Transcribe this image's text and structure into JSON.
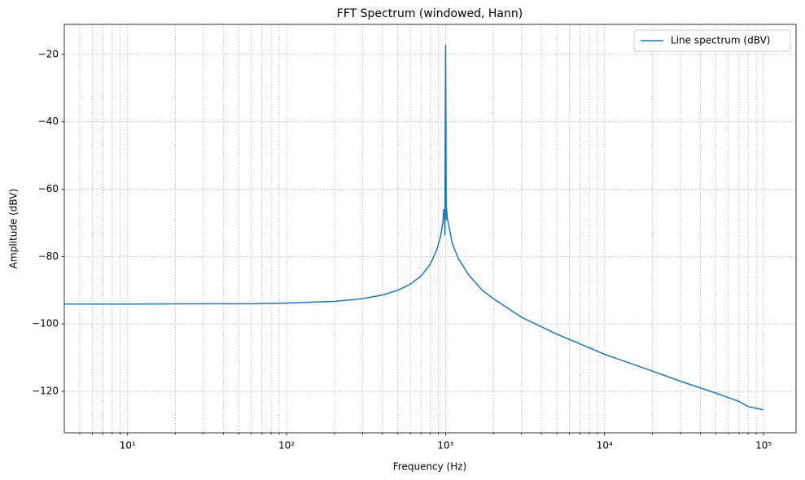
{
  "chart_data": {
    "type": "line",
    "title": "FFT Spectrum (windowed, Hann)",
    "xlabel": "Frequency (Hz)",
    "ylabel": "Amplitude (dBV)",
    "xscale": "log",
    "grid": true,
    "legend": "upper right",
    "x": [
      4,
      10,
      30,
      60,
      100,
      200,
      300,
      400,
      500,
      600,
      700,
      800,
      880,
      930,
      960,
      975,
      985,
      990,
      995,
      1000,
      1005,
      1010,
      1015,
      1025,
      1040,
      1100,
      1200,
      1400,
      1700,
      2000,
      3000,
      5000,
      10000,
      20000,
      30000,
      50000,
      70000,
      80000,
      100000
    ],
    "series": [
      {
        "name": "Line spectrum (dBV)",
        "color": "#1f77b4",
        "values": [
          -94.1,
          -94.1,
          -94.0,
          -94.0,
          -93.8,
          -93.3,
          -92.5,
          -91.4,
          -90.0,
          -88.2,
          -85.8,
          -82.3,
          -78.0,
          -74.0,
          -70.0,
          -66.0,
          -68.5,
          -73.5,
          -40.0,
          -17.2,
          -40.0,
          -69.0,
          -65.8,
          -68.5,
          -70.0,
          -76.0,
          -80.5,
          -85.5,
          -90.0,
          -92.5,
          -98.0,
          -103.0,
          -109.0,
          -114.0,
          -117.0,
          -120.5,
          -123.0,
          -124.5,
          -125.5
        ]
      }
    ],
    "xlim": [
      4,
      160000
    ],
    "ylim": [
      -132.3,
      -11.1
    ],
    "xticks": [
      {
        "value": 10,
        "label": "10¹"
      },
      {
        "value": 100,
        "label": "10²"
      },
      {
        "value": 1000,
        "label": "10³"
      },
      {
        "value": 10000,
        "label": "10⁴"
      },
      {
        "value": 100000,
        "label": "10⁵"
      }
    ],
    "xminor_ticks": [
      5,
      6,
      7,
      8,
      9,
      20,
      30,
      40,
      50,
      60,
      70,
      80,
      90,
      200,
      300,
      400,
      500,
      600,
      700,
      800,
      900,
      2000,
      3000,
      4000,
      5000,
      6000,
      7000,
      8000,
      9000,
      20000,
      30000,
      40000,
      50000,
      60000,
      70000,
      80000,
      90000
    ],
    "yticks": [
      {
        "value": -120,
        "label": "−120"
      },
      {
        "value": -100,
        "label": "−100"
      },
      {
        "value": -80,
        "label": "−80"
      },
      {
        "value": -60,
        "label": "−60"
      },
      {
        "value": -40,
        "label": "−40"
      },
      {
        "value": -20,
        "label": "−20"
      }
    ]
  }
}
